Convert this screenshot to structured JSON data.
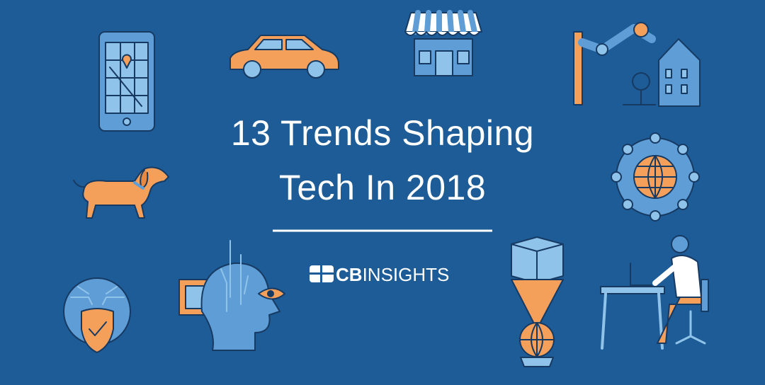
{
  "title": {
    "line1": "13 Trends Shaping",
    "line2": "Tech In 2018"
  },
  "brand": {
    "bold": "CB",
    "light": "INSIGHTS"
  }
}
